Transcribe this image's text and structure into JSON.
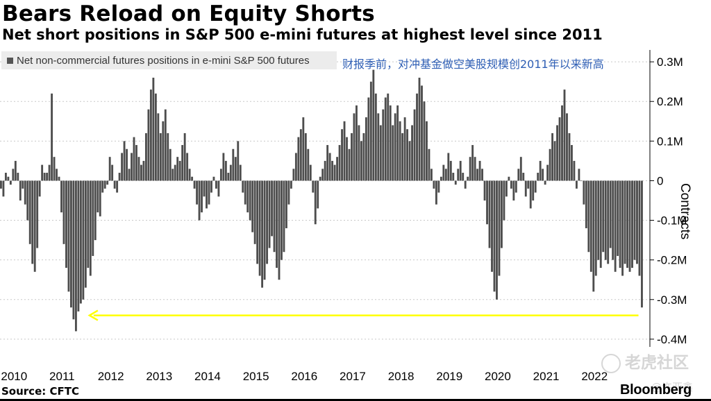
{
  "title": "Bears Reload on Equity Shorts",
  "subtitle": "Net short positions in S&P 500 e-mini futures at highest level since 2011",
  "annotation": "财报季前，对冲基金做空美股规模创2011年以来新高",
  "source": "Source: CFTC",
  "brand": "Bloomberg",
  "watermark": "老虎社区",
  "watermark_user": "@许亚鑫",
  "colors": {
    "bars": "#4d4d4d",
    "arrow": "#ffff00",
    "grid": "#c8c8c8",
    "annotation": "#2f5fb5"
  },
  "chart_data": {
    "type": "bar",
    "legend": [
      "Net non-commercial futures positions in e-mini S&P 500 futures"
    ],
    "ylabel": "Contracts",
    "ylim": [
      -0.43,
      0.33
    ],
    "yticks": [
      0.3,
      0.2,
      0.1,
      0,
      -0.1,
      -0.2,
      -0.3,
      -0.4
    ],
    "ytick_labels": [
      "0.3M",
      "0.2M",
      "0.1M",
      "0",
      "-0.1M",
      "-0.2M",
      "-0.3M",
      "-0.4M"
    ],
    "xlim": [
      2010.0,
      2023.35
    ],
    "xtick_labels": [
      "2010",
      "2011",
      "2012",
      "2013",
      "2014",
      "2015",
      "2016",
      "2017",
      "2018",
      "2019",
      "2020",
      "2021",
      "2022"
    ],
    "grid": true,
    "arrow": {
      "from_x": 2023.2,
      "to_x": 2011.85,
      "y": -0.34
    },
    "series": [
      {
        "name": "Net non-commercial futures positions in e-mini S&P 500 futures",
        "points": [
          [
            2010.0,
            -0.02
          ],
          [
            2010.05,
            -0.04
          ],
          [
            2010.1,
            0.02
          ],
          [
            2010.15,
            0.01
          ],
          [
            2010.2,
            -0.01
          ],
          [
            2010.25,
            0.03
          ],
          [
            2010.3,
            0.05
          ],
          [
            2010.35,
            0.02
          ],
          [
            2010.4,
            -0.05
          ],
          [
            2010.45,
            -0.02
          ],
          [
            2010.5,
            -0.06
          ],
          [
            2010.55,
            -0.1
          ],
          [
            2010.6,
            -0.16
          ],
          [
            2010.65,
            -0.21
          ],
          [
            2010.7,
            -0.23
          ],
          [
            2010.75,
            -0.17
          ],
          [
            2010.8,
            -0.04
          ],
          [
            2010.85,
            0.04
          ],
          [
            2010.9,
            0.02
          ],
          [
            2010.95,
            0.02
          ],
          [
            2011.0,
            0.04
          ],
          [
            2011.05,
            0.22
          ],
          [
            2011.1,
            0.06
          ],
          [
            2011.15,
            0.03
          ],
          [
            2011.2,
            0.01
          ],
          [
            2011.25,
            -0.08
          ],
          [
            2011.3,
            -0.16
          ],
          [
            2011.35,
            -0.22
          ],
          [
            2011.4,
            -0.28
          ],
          [
            2011.45,
            -0.32
          ],
          [
            2011.5,
            -0.35
          ],
          [
            2011.55,
            -0.38
          ],
          [
            2011.6,
            -0.33
          ],
          [
            2011.65,
            -0.31
          ],
          [
            2011.7,
            -0.3
          ],
          [
            2011.75,
            -0.27
          ],
          [
            2011.8,
            -0.22
          ],
          [
            2011.85,
            -0.24
          ],
          [
            2011.9,
            -0.19
          ],
          [
            2011.95,
            -0.15
          ],
          [
            2012.0,
            -0.08
          ],
          [
            2012.05,
            -0.09
          ],
          [
            2012.1,
            -0.03
          ],
          [
            2012.15,
            -0.02
          ],
          [
            2012.2,
            -0.01
          ],
          [
            2012.25,
            0.06
          ],
          [
            2012.3,
            0.04
          ],
          [
            2012.35,
            -0.02
          ],
          [
            2012.4,
            -0.03
          ],
          [
            2012.45,
            0.02
          ],
          [
            2012.5,
            0.07
          ],
          [
            2012.55,
            0.1
          ],
          [
            2012.6,
            0.08
          ],
          [
            2012.65,
            0.03
          ],
          [
            2012.7,
            0.07
          ],
          [
            2012.75,
            0.11
          ],
          [
            2012.8,
            0.09
          ],
          [
            2012.85,
            0.06
          ],
          [
            2012.9,
            0.04
          ],
          [
            2012.95,
            0.05
          ],
          [
            2013.0,
            0.12
          ],
          [
            2013.05,
            0.18
          ],
          [
            2013.1,
            0.23
          ],
          [
            2013.15,
            0.26
          ],
          [
            2013.2,
            0.22
          ],
          [
            2013.25,
            0.17
          ],
          [
            2013.3,
            0.12
          ],
          [
            2013.35,
            0.15
          ],
          [
            2013.4,
            0.18
          ],
          [
            2013.45,
            0.12
          ],
          [
            2013.5,
            0.08
          ],
          [
            2013.55,
            0.03
          ],
          [
            2013.6,
            0.04
          ],
          [
            2013.65,
            0.06
          ],
          [
            2013.7,
            0.05
          ],
          [
            2013.75,
            0.09
          ],
          [
            2013.8,
            0.12
          ],
          [
            2013.85,
            0.07
          ],
          [
            2013.9,
            0.03
          ],
          [
            2013.95,
            0.01
          ],
          [
            2014.0,
            -0.02
          ],
          [
            2014.05,
            -0.06
          ],
          [
            2014.1,
            -0.1
          ],
          [
            2014.15,
            -0.08
          ],
          [
            2014.2,
            -0.04
          ],
          [
            2014.25,
            -0.07
          ],
          [
            2014.3,
            -0.06
          ],
          [
            2014.35,
            -0.03
          ],
          [
            2014.4,
            0.01
          ],
          [
            2014.45,
            -0.02
          ],
          [
            2014.5,
            -0.04
          ],
          [
            2014.55,
            0.03
          ],
          [
            2014.6,
            0.07
          ],
          [
            2014.65,
            0.05
          ],
          [
            2014.7,
            0.02
          ],
          [
            2014.75,
            0.04
          ],
          [
            2014.8,
            0.08
          ],
          [
            2014.85,
            0.06
          ],
          [
            2014.9,
            0.1
          ],
          [
            2014.95,
            0.04
          ],
          [
            2015.0,
            -0.03
          ],
          [
            2015.05,
            -0.06
          ],
          [
            2015.1,
            -0.08
          ],
          [
            2015.15,
            -0.1
          ],
          [
            2015.2,
            -0.13
          ],
          [
            2015.25,
            -0.16
          ],
          [
            2015.3,
            -0.21
          ],
          [
            2015.35,
            -0.24
          ],
          [
            2015.4,
            -0.27
          ],
          [
            2015.45,
            -0.25
          ],
          [
            2015.5,
            -0.21
          ],
          [
            2015.55,
            -0.17
          ],
          [
            2015.6,
            -0.14
          ],
          [
            2015.65,
            -0.18
          ],
          [
            2015.7,
            -0.22
          ],
          [
            2015.75,
            -0.25
          ],
          [
            2015.8,
            -0.2
          ],
          [
            2015.85,
            -0.18
          ],
          [
            2015.9,
            -0.12
          ],
          [
            2015.95,
            -0.06
          ],
          [
            2016.0,
            -0.02
          ],
          [
            2016.05,
            0.03
          ],
          [
            2016.1,
            0.07
          ],
          [
            2016.15,
            0.11
          ],
          [
            2016.2,
            0.13
          ],
          [
            2016.25,
            0.16
          ],
          [
            2016.3,
            0.12
          ],
          [
            2016.35,
            0.08
          ],
          [
            2016.4,
            0.04
          ],
          [
            2016.45,
            -0.03
          ],
          [
            2016.5,
            -0.11
          ],
          [
            2016.55,
            -0.07
          ],
          [
            2016.6,
            0.01
          ],
          [
            2016.65,
            0.03
          ],
          [
            2016.7,
            0.05
          ],
          [
            2016.75,
            0.09
          ],
          [
            2016.8,
            0.07
          ],
          [
            2016.85,
            0.05
          ],
          [
            2016.9,
            0.04
          ],
          [
            2016.95,
            0.06
          ],
          [
            2017.0,
            0.09
          ],
          [
            2017.05,
            0.13
          ],
          [
            2017.1,
            0.15
          ],
          [
            2017.15,
            0.11
          ],
          [
            2017.2,
            0.08
          ],
          [
            2017.25,
            0.12
          ],
          [
            2017.3,
            0.17
          ],
          [
            2017.35,
            0.19
          ],
          [
            2017.4,
            0.14
          ],
          [
            2017.45,
            0.1
          ],
          [
            2017.5,
            0.12
          ],
          [
            2017.55,
            0.16
          ],
          [
            2017.6,
            0.21
          ],
          [
            2017.65,
            0.25
          ],
          [
            2017.7,
            0.28
          ],
          [
            2017.75,
            0.22
          ],
          [
            2017.8,
            0.17
          ],
          [
            2017.85,
            0.14
          ],
          [
            2017.9,
            0.18
          ],
          [
            2017.95,
            0.21
          ],
          [
            2018.0,
            0.22
          ],
          [
            2018.05,
            0.19
          ],
          [
            2018.1,
            0.14
          ],
          [
            2018.15,
            0.17
          ],
          [
            2018.2,
            0.19
          ],
          [
            2018.25,
            0.15
          ],
          [
            2018.3,
            0.12
          ],
          [
            2018.35,
            0.16
          ],
          [
            2018.4,
            0.13
          ],
          [
            2018.45,
            0.1
          ],
          [
            2018.5,
            0.14
          ],
          [
            2018.55,
            0.18
          ],
          [
            2018.6,
            0.22
          ],
          [
            2018.65,
            0.26
          ],
          [
            2018.7,
            0.24
          ],
          [
            2018.75,
            0.2
          ],
          [
            2018.8,
            0.15
          ],
          [
            2018.85,
            0.08
          ],
          [
            2018.9,
            0.03
          ],
          [
            2018.95,
            -0.02
          ],
          [
            2019.0,
            -0.06
          ],
          [
            2019.05,
            -0.03
          ],
          [
            2019.1,
            0.01
          ],
          [
            2019.15,
            0.04
          ],
          [
            2019.2,
            0.03
          ],
          [
            2019.25,
            0.07
          ],
          [
            2019.3,
            0.05
          ],
          [
            2019.35,
            0.02
          ],
          [
            2019.4,
            -0.01
          ],
          [
            2019.45,
            0.03
          ],
          [
            2019.5,
            0.05
          ],
          [
            2019.55,
            0.02
          ],
          [
            2019.6,
            -0.02
          ],
          [
            2019.65,
            0.01
          ],
          [
            2019.7,
            0.06
          ],
          [
            2019.75,
            0.09
          ],
          [
            2019.8,
            0.06
          ],
          [
            2019.85,
            0.03
          ],
          [
            2019.9,
            0.05
          ],
          [
            2019.95,
            0.03
          ],
          [
            2020.0,
            -0.05
          ],
          [
            2020.05,
            -0.11
          ],
          [
            2020.1,
            -0.17
          ],
          [
            2020.15,
            -0.23
          ],
          [
            2020.2,
            -0.28
          ],
          [
            2020.25,
            -0.3
          ],
          [
            2020.3,
            -0.24
          ],
          [
            2020.35,
            -0.17
          ],
          [
            2020.4,
            -0.1
          ],
          [
            2020.45,
            -0.04
          ],
          [
            2020.5,
            0.01
          ],
          [
            2020.55,
            -0.02
          ],
          [
            2020.6,
            -0.05
          ],
          [
            2020.65,
            -0.03
          ],
          [
            2020.7,
            0.03
          ],
          [
            2020.75,
            0.06
          ],
          [
            2020.8,
            0.02
          ],
          [
            2020.85,
            -0.04
          ],
          [
            2020.9,
            -0.02
          ],
          [
            2020.95,
            -0.07
          ],
          [
            2021.0,
            -0.05
          ],
          [
            2021.05,
            -0.03
          ],
          [
            2021.1,
            0.02
          ],
          [
            2021.15,
            0.05
          ],
          [
            2021.2,
            0.03
          ],
          [
            2021.25,
            -0.01
          ],
          [
            2021.3,
            0.04
          ],
          [
            2021.35,
            0.08
          ],
          [
            2021.4,
            0.12
          ],
          [
            2021.45,
            0.1
          ],
          [
            2021.5,
            0.14
          ],
          [
            2021.55,
            0.16
          ],
          [
            2021.6,
            0.19
          ],
          [
            2021.65,
            0.23
          ],
          [
            2021.7,
            0.17
          ],
          [
            2021.75,
            0.12
          ],
          [
            2021.8,
            0.09
          ],
          [
            2021.85,
            0.05
          ],
          [
            2021.9,
            -0.02
          ],
          [
            2021.95,
            0.03
          ],
          [
            2022.0,
            0.0
          ],
          [
            2022.05,
            -0.06
          ],
          [
            2022.1,
            -0.12
          ],
          [
            2022.15,
            -0.18
          ],
          [
            2022.2,
            -0.23
          ],
          [
            2022.25,
            -0.28
          ],
          [
            2022.3,
            -0.24
          ],
          [
            2022.35,
            -0.2
          ],
          [
            2022.4,
            -0.22
          ],
          [
            2022.45,
            -0.18
          ],
          [
            2022.5,
            -0.2
          ],
          [
            2022.55,
            -0.21
          ],
          [
            2022.6,
            -0.17
          ],
          [
            2022.65,
            -0.2
          ],
          [
            2022.7,
            -0.23
          ],
          [
            2022.75,
            -0.19
          ],
          [
            2022.8,
            -0.22
          ],
          [
            2022.85,
            -0.24
          ],
          [
            2022.9,
            -0.21
          ],
          [
            2022.95,
            -0.22
          ],
          [
            2023.0,
            -0.23
          ],
          [
            2023.05,
            -0.22
          ],
          [
            2023.1,
            -0.2
          ],
          [
            2023.15,
            -0.21
          ],
          [
            2023.2,
            -0.24
          ],
          [
            2023.25,
            -0.32
          ]
        ]
      }
    ]
  }
}
